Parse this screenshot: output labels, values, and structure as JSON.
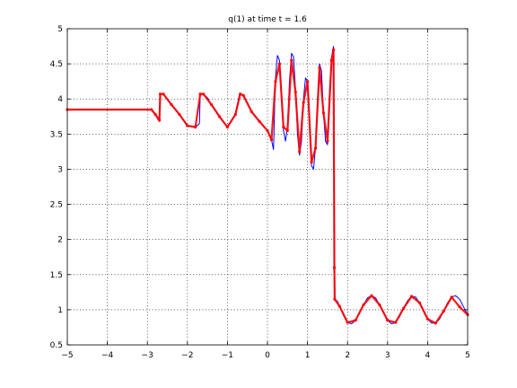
{
  "chart_data": {
    "type": "line",
    "title": "q(1)   at time t = 1.6",
    "xlabel": "",
    "ylabel": "",
    "xlim": [
      -5,
      5
    ],
    "ylim": [
      0.5,
      5
    ],
    "grid": true,
    "x_ticks": [
      -5,
      -4,
      -3,
      -2,
      -1,
      0,
      1,
      2,
      3,
      4,
      5
    ],
    "y_ticks": [
      0.5,
      1,
      1.5,
      2,
      2.5,
      3,
      3.5,
      4,
      4.5,
      5
    ],
    "x_tick_labels": [
      "−5",
      "−4",
      "−3",
      "−2",
      "−1",
      "0",
      "1",
      "2",
      "3",
      "4",
      "5"
    ],
    "y_tick_labels": [
      "0.5",
      "1",
      "1.5",
      "2",
      "2.5",
      "3",
      "3.5",
      "4",
      "4.5",
      "5"
    ],
    "colors": {
      "reference_line": "#0000ff",
      "markers": "#ff0000"
    },
    "series": [
      {
        "style": "solid-line",
        "color": "#0000ff",
        "x": [
          -5,
          -2.9,
          -2.8,
          -2.75,
          -2.7,
          -2.68,
          -2.6,
          -2.5,
          -2.4,
          -2.2,
          -2.0,
          -1.8,
          -1.7,
          -1.68,
          -1.6,
          -1.5,
          -1.4,
          -1.2,
          -1.0,
          -0.8,
          -0.7,
          -0.68,
          -0.6,
          -0.5,
          -0.4,
          -0.2,
          0.0,
          0.1,
          0.15,
          0.2,
          0.25,
          0.3,
          0.35,
          0.4,
          0.45,
          0.5,
          0.55,
          0.6,
          0.65,
          0.7,
          0.75,
          0.8,
          0.85,
          0.9,
          0.95,
          1.0,
          1.05,
          1.1,
          1.15,
          1.2,
          1.25,
          1.3,
          1.35,
          1.4,
          1.45,
          1.5,
          1.55,
          1.6,
          1.65,
          1.66,
          1.67,
          1.68,
          1.75,
          1.8,
          1.9,
          2.0,
          2.1,
          2.2,
          2.3,
          2.4,
          2.5,
          2.6,
          2.7,
          2.8,
          2.9,
          3.0,
          3.1,
          3.2,
          3.3,
          3.4,
          3.5,
          3.6,
          3.7,
          3.8,
          3.9,
          4.0,
          4.1,
          4.2,
          4.3,
          4.4,
          4.5,
          4.6,
          4.7,
          4.8,
          4.9,
          5.0
        ],
        "values": [
          3.85,
          3.85,
          3.78,
          3.72,
          3.68,
          4.07,
          4.07,
          4.0,
          3.92,
          3.78,
          3.62,
          3.6,
          3.65,
          4.07,
          4.07,
          4.02,
          3.92,
          3.75,
          3.6,
          3.78,
          4.07,
          4.07,
          4.05,
          3.95,
          3.82,
          3.68,
          3.55,
          3.42,
          3.28,
          4.3,
          4.62,
          4.55,
          4.1,
          3.55,
          3.4,
          3.6,
          4.25,
          4.65,
          4.6,
          4.15,
          3.5,
          3.2,
          3.4,
          4.0,
          4.3,
          4.25,
          3.7,
          3.05,
          3.0,
          3.3,
          4.0,
          4.5,
          4.4,
          3.8,
          3.4,
          3.35,
          4.1,
          4.6,
          4.75,
          3.9,
          2.5,
          1.15,
          1.12,
          1.05,
          0.92,
          0.82,
          0.8,
          0.85,
          0.95,
          1.07,
          1.17,
          1.2,
          1.17,
          1.07,
          0.95,
          0.85,
          0.8,
          0.82,
          0.9,
          1.02,
          1.13,
          1.19,
          1.18,
          1.1,
          0.98,
          0.87,
          0.81,
          0.81,
          0.87,
          0.98,
          1.1,
          1.18,
          1.2,
          1.15,
          1.04,
          0.93
        ]
      },
      {
        "style": "markers",
        "color": "#ff0000",
        "x": [
          -5,
          -2.9,
          -2.8,
          -2.7,
          -2.68,
          -2.6,
          -2.4,
          -2.2,
          -2.0,
          -1.8,
          -1.68,
          -1.6,
          -1.4,
          -1.2,
          -1.0,
          -0.8,
          -0.68,
          -0.6,
          -0.4,
          -0.2,
          0.0,
          0.1,
          0.2,
          0.3,
          0.4,
          0.5,
          0.6,
          0.7,
          0.8,
          0.9,
          1.0,
          1.1,
          1.2,
          1.3,
          1.4,
          1.5,
          1.6,
          1.65,
          1.67,
          1.68,
          1.8,
          2.0,
          2.2,
          2.4,
          2.6,
          2.8,
          3.0,
          3.2,
          3.4,
          3.6,
          3.8,
          4.0,
          4.2,
          4.4,
          4.6,
          4.8,
          5.0
        ],
        "values": [
          3.85,
          3.85,
          3.78,
          3.7,
          4.07,
          4.07,
          3.92,
          3.78,
          3.62,
          3.6,
          4.07,
          4.07,
          3.92,
          3.75,
          3.6,
          3.78,
          4.07,
          4.05,
          3.82,
          3.68,
          3.55,
          3.42,
          4.25,
          4.5,
          3.6,
          3.55,
          4.55,
          4.1,
          3.25,
          3.95,
          4.25,
          3.1,
          3.3,
          4.45,
          3.8,
          3.4,
          4.55,
          4.7,
          1.6,
          1.15,
          1.05,
          0.82,
          0.85,
          1.07,
          1.2,
          1.07,
          0.85,
          0.82,
          1.02,
          1.19,
          1.1,
          0.87,
          0.81,
          0.98,
          1.18,
          1.04,
          0.93
        ]
      }
    ]
  }
}
